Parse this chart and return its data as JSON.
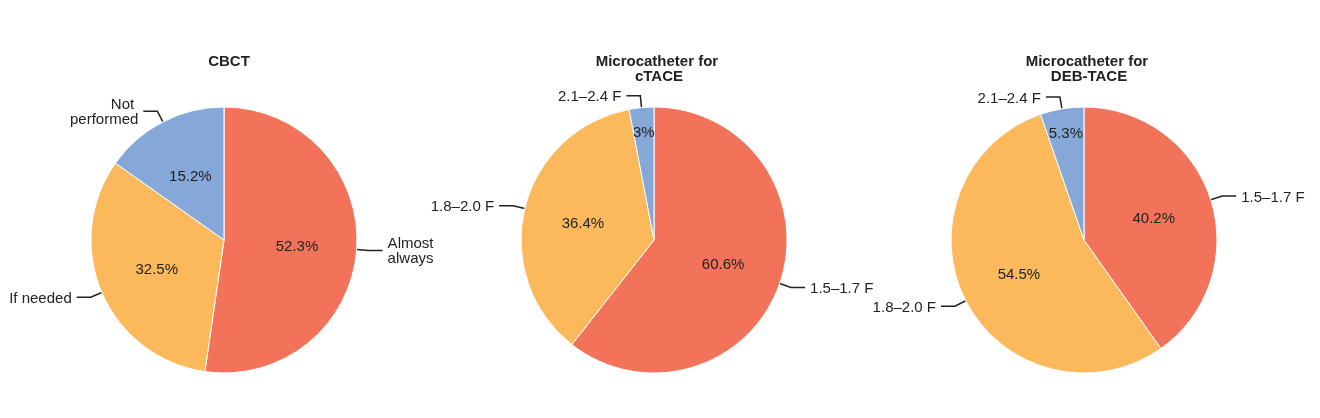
{
  "chart_data": [
    {
      "type": "pie",
      "title": "CBCT",
      "categories": [
        "Almost always",
        "If needed",
        "Not performed"
      ],
      "values": [
        52.3,
        32.5,
        15.2
      ],
      "colors": [
        "#f2735a",
        "#fbb95b",
        "#85a8d8"
      ],
      "value_labels": [
        "52.3%",
        "32.5%",
        "15.2%"
      ]
    },
    {
      "type": "pie",
      "title": "Microcatheter for cTACE",
      "categories": [
        "1.5–1.7 F",
        "1.8–2.0 F",
        "2.1–2.4 F"
      ],
      "values": [
        60.6,
        36.4,
        3
      ],
      "colors": [
        "#f2735a",
        "#fbb95b",
        "#85a8d8"
      ],
      "value_labels": [
        "60.6%",
        "36.4%",
        "3%"
      ]
    },
    {
      "type": "pie",
      "title": "Microcatheter for DEB-TACE",
      "categories": [
        "1.5–1.7 F",
        "1.8–2.0 F",
        "2.1–2.4 F"
      ],
      "values": [
        40.2,
        54.5,
        5.3
      ],
      "colors": [
        "#f2735a",
        "#fbb95b",
        "#85a8d8"
      ],
      "value_labels": [
        "40.2%",
        "54.5%",
        "5.3%"
      ]
    }
  ]
}
